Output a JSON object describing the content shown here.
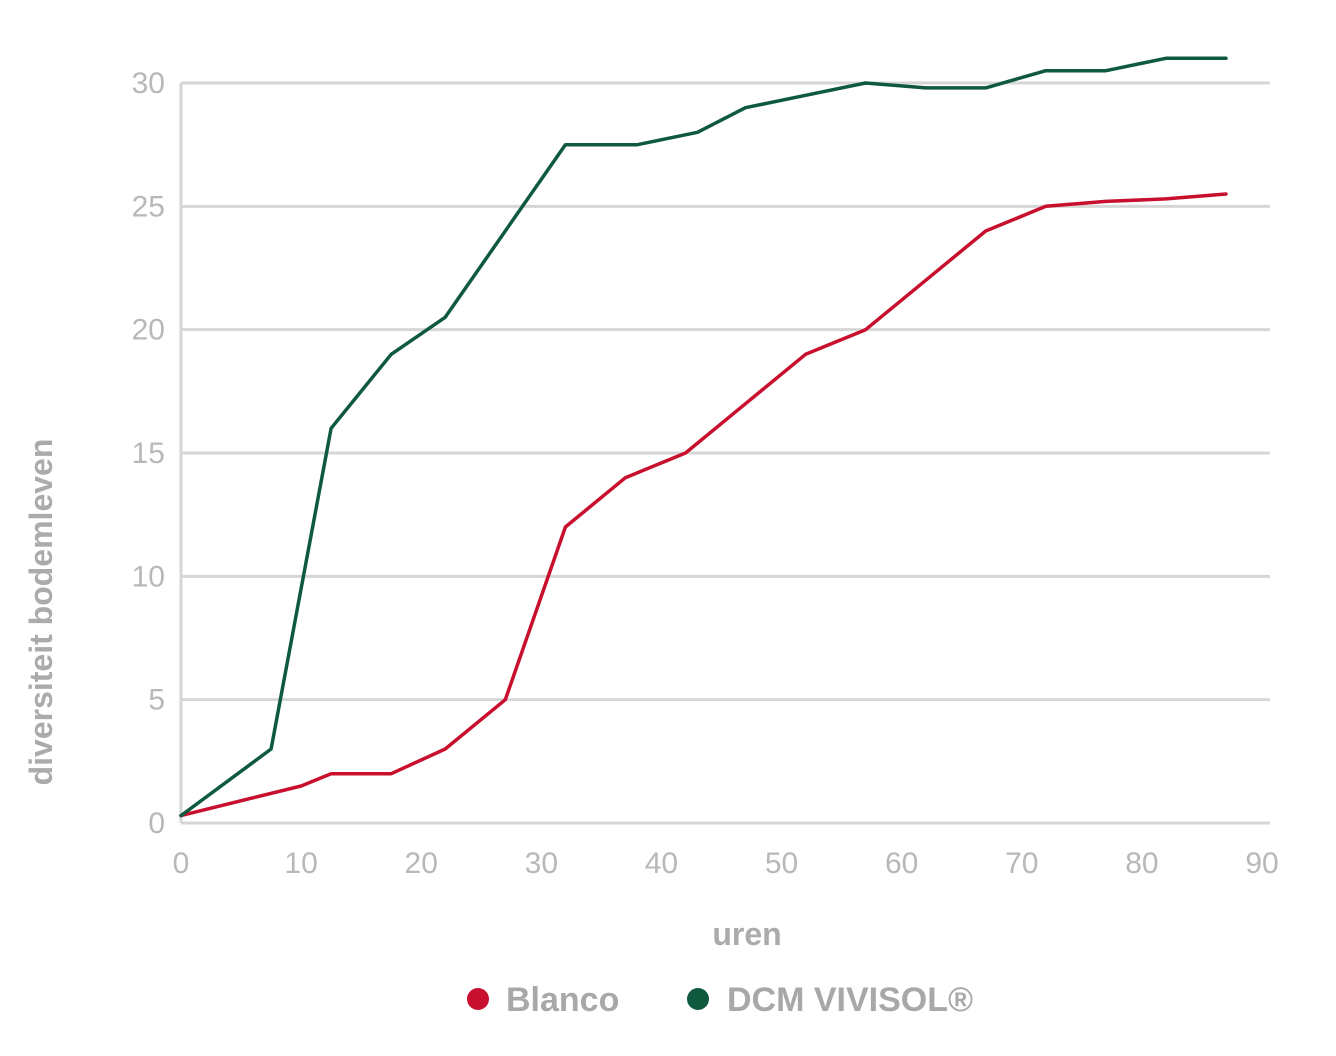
{
  "chart_data": {
    "type": "line",
    "title": "",
    "xlabel": "uren",
    "ylabel": "diversiteit bodemleven",
    "xlim": [
      0,
      90
    ],
    "ylim": [
      0,
      30
    ],
    "xticks": [
      0,
      10,
      20,
      30,
      40,
      50,
      60,
      70,
      80,
      90
    ],
    "yticks": [
      0,
      5,
      10,
      15,
      20,
      25,
      30
    ],
    "grid": "horizontal",
    "legend_position": "bottom-center",
    "series": [
      {
        "name": "Blanco",
        "color": "#c8102e",
        "x": [
          0,
          10,
          12.5,
          17.5,
          22,
          27,
          32,
          37,
          42,
          47,
          52,
          57,
          62,
          67,
          72,
          77,
          82,
          87
        ],
        "y": [
          0.3,
          1.5,
          2,
          2,
          3,
          5,
          12,
          14,
          15,
          17,
          19,
          20,
          22,
          24,
          25,
          25.2,
          25.3,
          25.5
        ]
      },
      {
        "name": "DCM VIVISOL®",
        "color": "#0f5a3f",
        "x": [
          0,
          7.5,
          12.5,
          17.5,
          22,
          27,
          32,
          38,
          43,
          47,
          52,
          57,
          62,
          67,
          72,
          77,
          82,
          87
        ],
        "y": [
          0.3,
          3,
          16,
          19,
          20.5,
          24,
          27.5,
          27.5,
          28,
          29,
          29.5,
          30,
          29.8,
          29.8,
          30.5,
          30.5,
          31,
          31
        ]
      }
    ]
  }
}
